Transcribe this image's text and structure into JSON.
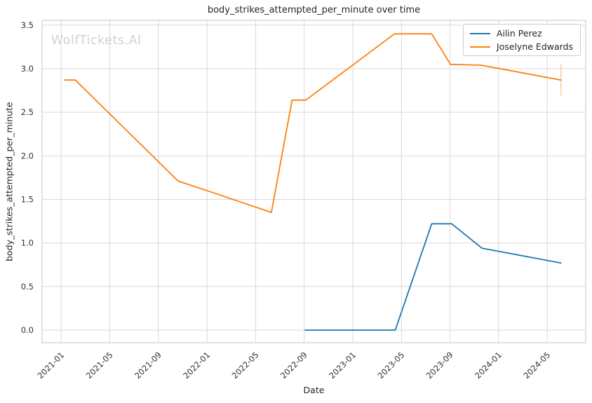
{
  "watermark": "WolfTickets.AI",
  "chart_data": {
    "type": "line",
    "title": "body_strikes_attempted_per_minute over time",
    "xlabel": "Date",
    "ylabel": "body_strikes_attempted_per_minute",
    "grid": true,
    "legend": {
      "position": "upper right"
    },
    "colors": {
      "grid": "#d9d9d9",
      "spine": "#cfcfcf",
      "tick_text": "#333333",
      "title_text": "#262626",
      "watermark": "#d2d2d2",
      "series_blue": "#1f77b4",
      "series_orange": "#ff7f0e",
      "error_bar": "rgba(255,127,14,0.38)"
    },
    "x_axis": {
      "min_date": "2020-11-14",
      "max_date": "2024-08-06",
      "ticks": [
        "2021-01",
        "2021-05",
        "2021-09",
        "2022-01",
        "2022-05",
        "2022-09",
        "2023-01",
        "2023-05",
        "2023-09",
        "2024-01",
        "2024-05"
      ],
      "tick_label_rotation_deg": 45
    },
    "y_axis": {
      "min": -0.145,
      "max": 3.555,
      "ticks": [
        {
          "value": 0.0,
          "label": "0.0"
        },
        {
          "value": 0.5,
          "label": "0.5"
        },
        {
          "value": 1.0,
          "label": "1.0"
        },
        {
          "value": 1.5,
          "label": "1.5"
        },
        {
          "value": 2.0,
          "label": "2.0"
        },
        {
          "value": 2.5,
          "label": "2.5"
        },
        {
          "value": 3.0,
          "label": "3.0"
        },
        {
          "value": 3.5,
          "label": "3.5"
        }
      ]
    },
    "series": [
      {
        "name": "Ailin Perez",
        "color": "#1f77b4",
        "points": [
          {
            "date": "2022-09-03",
            "value": 0.0
          },
          {
            "date": "2023-04-16",
            "value": 0.0
          },
          {
            "date": "2023-07-16",
            "value": 1.22
          },
          {
            "date": "2023-09-05",
            "value": 1.22
          },
          {
            "date": "2023-11-20",
            "value": 0.94
          },
          {
            "date": "2024-06-05",
            "value": 0.77
          }
        ]
      },
      {
        "name": "Joselyne Edwards",
        "color": "#ff7f0e",
        "points": [
          {
            "date": "2021-01-10",
            "value": 2.87
          },
          {
            "date": "2021-02-06",
            "value": 2.87
          },
          {
            "date": "2021-10-20",
            "value": 1.71
          },
          {
            "date": "2022-01-08",
            "value": 1.59
          },
          {
            "date": "2022-06-10",
            "value": 1.35
          },
          {
            "date": "2022-08-01",
            "value": 2.64
          },
          {
            "date": "2022-09-05",
            "value": 2.64
          },
          {
            "date": "2023-04-14",
            "value": 3.4
          },
          {
            "date": "2023-07-16",
            "value": 3.4
          },
          {
            "date": "2023-09-02",
            "value": 3.05
          },
          {
            "date": "2023-11-18",
            "value": 3.04
          },
          {
            "date": "2024-06-05",
            "value": 2.87
          }
        ],
        "error_bar_last_point": {
          "low": 2.69,
          "high": 3.05
        }
      }
    ]
  }
}
